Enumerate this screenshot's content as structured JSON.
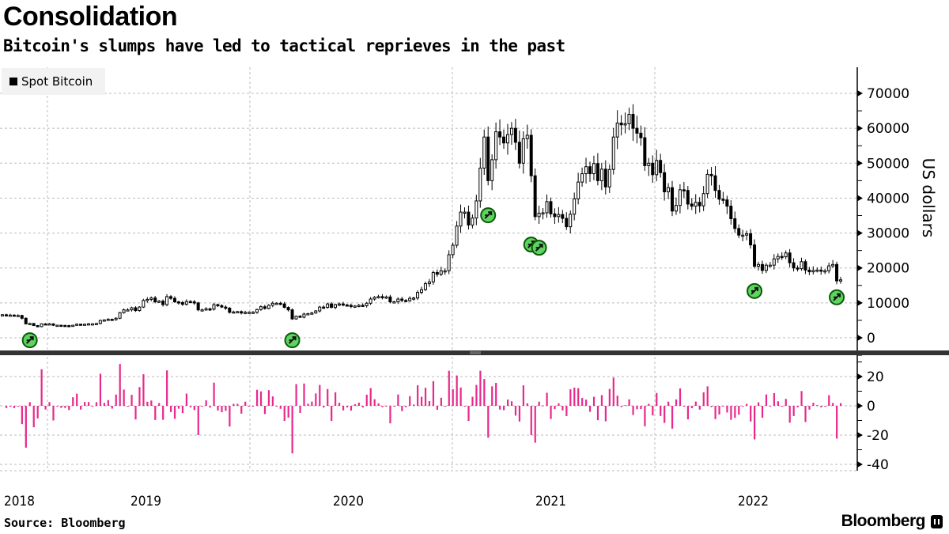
{
  "header": {
    "title": "Consolidation",
    "subtitle": "Bitcoin's slumps have led to tactical reprieves in the past"
  },
  "footer": {
    "source": "Source: Bloomberg",
    "brand": "Bloomberg"
  },
  "colors": {
    "candle": "#000000",
    "bars": "#e8288c",
    "marker_fill": "#5fd35f",
    "marker_stroke": "#0a5a0a",
    "separator": "#333333",
    "grid": "#bbbbbb"
  },
  "chart_data": [
    {
      "type": "candlestick",
      "title": "Consolidation",
      "legend": [
        "Spot Bitcoin"
      ],
      "legend_placement": "top-left",
      "ylabel": "US dollars",
      "ylim": [
        -3500,
        78000
      ],
      "yticks": [
        "0",
        "10000",
        "20000",
        "30000",
        "40000",
        "50000",
        "60000",
        "70000"
      ],
      "ytick_values": [
        0,
        10000,
        20000,
        30000,
        40000,
        50000,
        60000,
        70000
      ],
      "xticks": [
        "2018",
        "2019",
        "2020",
        "2021",
        "2022"
      ],
      "frequency": "weekly",
      "grid": true,
      "weekly_close": [
        6600,
        6500,
        6500,
        6400,
        6400,
        5600,
        4000,
        4100,
        3500,
        3200,
        4000,
        3900,
        4000,
        3600,
        3600,
        3550,
        3500,
        3400,
        3600,
        3900,
        3800,
        3900,
        4000,
        4000,
        4100,
        5000,
        5100,
        5300,
        5200,
        5600,
        7200,
        8000,
        8000,
        8600,
        7800,
        8800,
        10700,
        11000,
        11400,
        10300,
        10500,
        9500,
        11800,
        11300,
        10300,
        10100,
        9600,
        10400,
        10300,
        10000,
        8000,
        8000,
        8300,
        8200,
        9500,
        9200,
        8800,
        8500,
        7300,
        7400,
        7500,
        7100,
        7300,
        7300,
        7300,
        8100,
        8900,
        8400,
        9300,
        9900,
        9900,
        9700,
        8700,
        8000,
        5400,
        6200,
        5900,
        6800,
        6900,
        7100,
        7700,
        8800,
        8700,
        9700,
        8700,
        9500,
        9700,
        9400,
        9300,
        9000,
        9100,
        9300,
        9200,
        9900,
        11100,
        11600,
        11800,
        11700,
        11700,
        10300,
        10300,
        11100,
        10700,
        10600,
        11300,
        11400,
        13000,
        13800,
        15500,
        16000,
        18700,
        18200,
        19200,
        19200,
        23800,
        26500,
        32000,
        36000,
        36000,
        32300,
        34300,
        39200,
        48600,
        57500,
        45000,
        51000,
        59000,
        57500,
        55800,
        58200,
        60000,
        56000,
        50000,
        57000,
        58000,
        46400,
        34700,
        35700,
        35800,
        39000,
        35500,
        34700,
        35300,
        34200,
        31800,
        35400,
        39800,
        44600,
        47000,
        49000,
        47000,
        49900,
        45000,
        48300,
        43200,
        48200,
        57500,
        61500,
        61000,
        61300,
        64000,
        60000,
        58600,
        57300,
        49300,
        50000,
        46700,
        50800,
        47300,
        41800,
        43000,
        36300,
        37900,
        42400,
        42200,
        38300,
        37700,
        38800,
        37800,
        41300,
        46800,
        46400,
        42200,
        39700,
        39500,
        37700,
        34100,
        31300,
        29400,
        29400,
        29800,
        26600,
        20500,
        21000,
        19300,
        20800,
        20800,
        22600,
        23300,
        23200,
        24300,
        21500,
        20000,
        19800,
        21800,
        19400,
        18900,
        19300,
        19400,
        19200,
        19200,
        20600,
        21000,
        16300,
        16600
      ],
      "markers": [
        {
          "week_index": 7,
          "price": -700
        },
        {
          "week_index": 74,
          "price": -700
        },
        {
          "week_index": 124,
          "price": 35100
        },
        {
          "week_index": 135,
          "price": 26700
        },
        {
          "week_index": 137,
          "price": 25800
        },
        {
          "week_index": 192,
          "price": 13400
        },
        {
          "week_index": 213,
          "price": 11600
        }
      ]
    },
    {
      "type": "bar",
      "series_name": "Weekly % change (derived from Spot Bitcoin closes)",
      "ylim": [
        -40,
        32
      ],
      "yticks": [
        "20",
        "0",
        "-20",
        "-40"
      ],
      "ytick_values": [
        20,
        0,
        -20,
        -40
      ]
    }
  ]
}
